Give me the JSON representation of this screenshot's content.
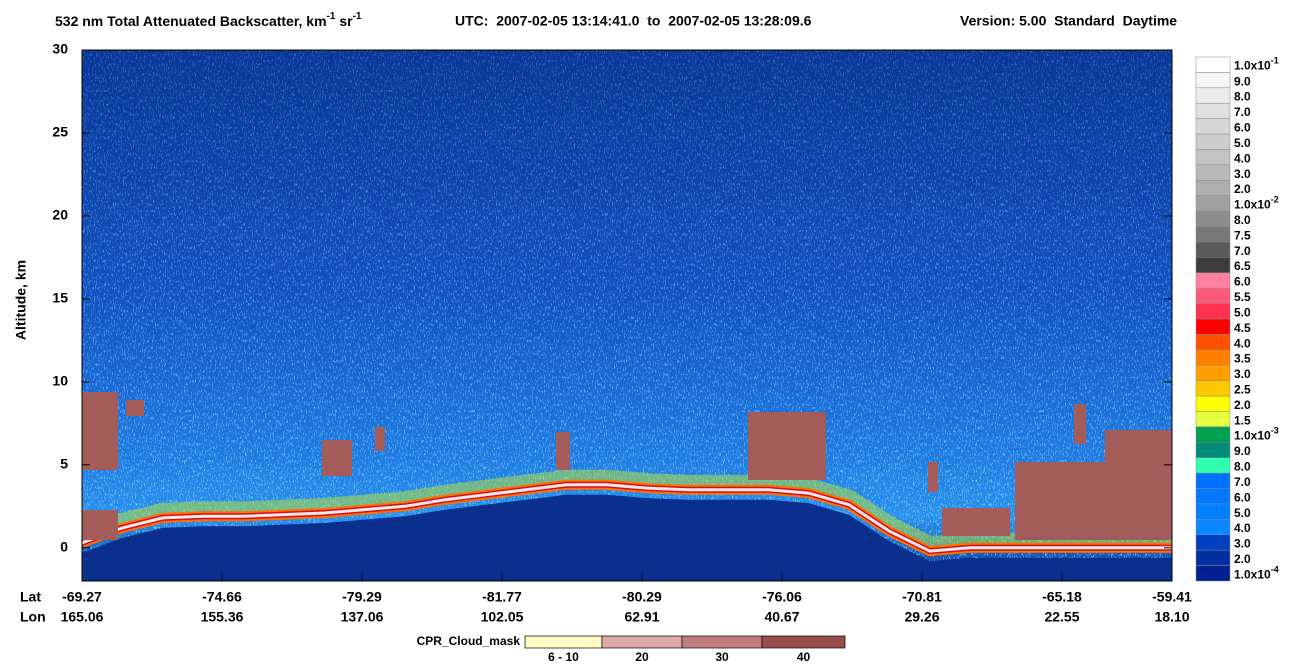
{
  "chart_data": {
    "type": "curtain",
    "title": [
      {
        "text": "532 nm Total Attenuated Backscatter, km"
      },
      {
        "sup": "-1"
      },
      {
        "text": " sr"
      },
      {
        "sup": "-1"
      }
    ],
    "utc": "UTC:  2007-02-05 13:14:41.0  to  2007-02-05 13:28:09.6",
    "version": "Version: 5.00  Standard  Daytime",
    "ylabel": "Altitude, km",
    "ylim": [
      -2,
      30
    ],
    "yticks": [
      0,
      5,
      10,
      15,
      20,
      25,
      30
    ],
    "x_rows": [
      "Lat",
      "Lon"
    ],
    "lat": [
      -69.27,
      -74.66,
      -79.29,
      -81.77,
      -80.29,
      -76.06,
      -70.81,
      -65.18,
      -59.41
    ],
    "lon": [
      165.06,
      155.36,
      137.06,
      102.05,
      62.91,
      40.67,
      29.26,
      22.55,
      {
        "value": 18.1,
        "label": "18.10"
      }
    ],
    "surface": {
      "values": [
        0.3,
        1.2,
        1.8,
        1.9,
        1.9,
        2.0,
        2.1,
        2.3,
        2.5,
        2.9,
        3.2,
        3.5,
        3.8,
        3.8,
        3.6,
        3.5,
        3.5,
        3.5,
        3.3,
        2.6,
        1.0,
        -0.2,
        0,
        0,
        0,
        0,
        0,
        0
      ]
    },
    "colorbar": {
      "labels": [
        {
          "text": "1.0x10",
          "sup": "-1"
        },
        "9.0",
        "8.0",
        "7.0",
        "6.0",
        "5.0",
        "4.0",
        "3.0",
        "2.0",
        {
          "text": "1.0x10",
          "sup": "-2"
        },
        "8.0",
        "7.5",
        "7.0",
        "6.5",
        "6.0",
        "5.5",
        "5.0",
        "4.5",
        "4.0",
        "3.5",
        "3.0",
        "2.5",
        "2.0",
        "1.5",
        {
          "text": "1.0x10",
          "sup": "-3"
        },
        "9.0",
        "8.0",
        "7.0",
        "6.0",
        "5.0",
        "4.0",
        "3.0",
        "2.0",
        {
          "text": "1.0x10",
          "sup": "-4"
        }
      ],
      "colors": [
        "#ffffff",
        "#f5f5f5",
        "#ebebeb",
        "#e1e1e1",
        "#d7d7d7",
        "#cdcdcd",
        "#c3c3c3",
        "#b9b9b9",
        "#afafaf",
        "#a0a0a0",
        "#8c8c8c",
        "#787878",
        "#5a5a5a",
        "#3c3c3c",
        "#ff7fa0",
        "#ff5a78",
        "#ff3050",
        "#ff0000",
        "#ff5000",
        "#ff7f00",
        "#ffa000",
        "#ffc800",
        "#ffff00",
        "#e6ff40",
        "#00a050",
        "#008c78",
        "#30ffb0",
        "#0070ff",
        "#0078ff",
        "#0080ff",
        "#0a88ff",
        "#0040c0",
        "#0030a0",
        "#002090"
      ]
    },
    "cpr_legend": {
      "title": "CPR_Cloud_mask",
      "labels": [
        "6 - 10",
        "20",
        "30",
        "40"
      ],
      "colors": [
        "#fffbc0",
        "#dcaaa8",
        "#bf7f7e",
        "#9a4c4a"
      ]
    }
  }
}
